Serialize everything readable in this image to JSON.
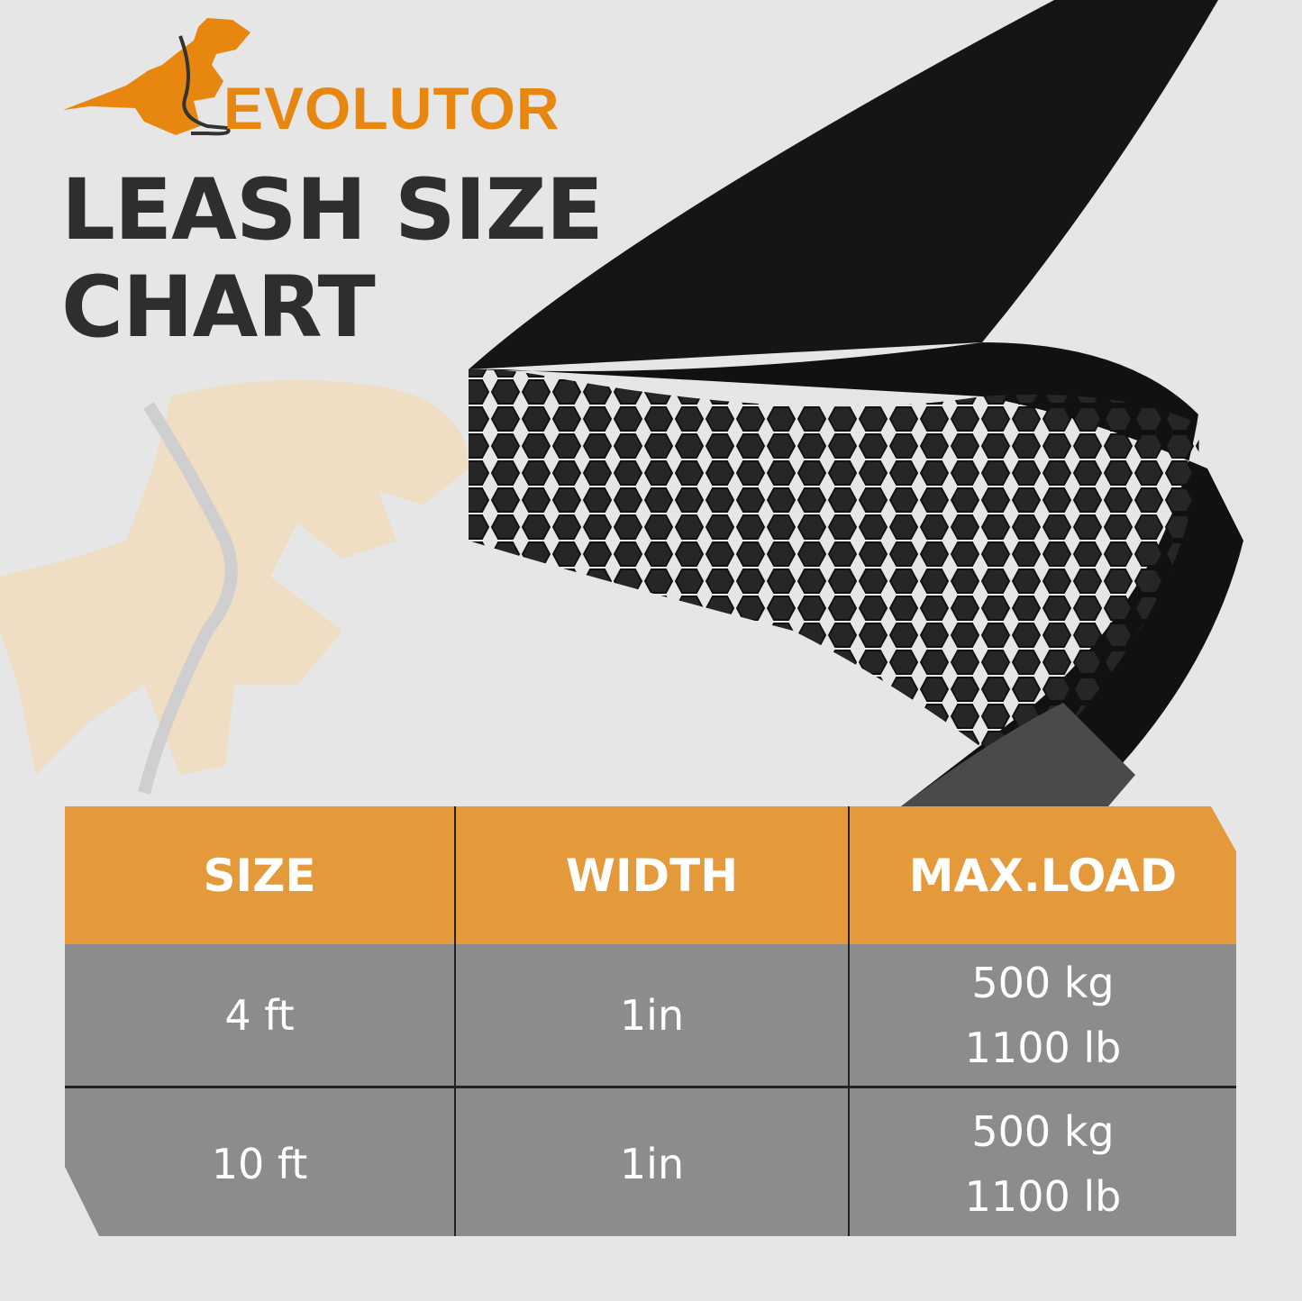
{
  "brand": {
    "name": "EVOLUTOR",
    "color": "#e8870f"
  },
  "title": {
    "line1": "LEASH SIZE",
    "line2": "CHART"
  },
  "table": {
    "headers": [
      "SIZE",
      "WIDTH",
      "MAX.LOAD"
    ],
    "header_color": "#e49a3a",
    "row_color": "#8c8c8c",
    "rows": [
      {
        "size": "4 ft",
        "width": "1in",
        "load_kg": "500 kg",
        "load_lb": "1100 lb"
      },
      {
        "size": "10 ft",
        "width": "1in",
        "load_kg": "500 kg",
        "load_lb": "1100 lb"
      }
    ]
  }
}
